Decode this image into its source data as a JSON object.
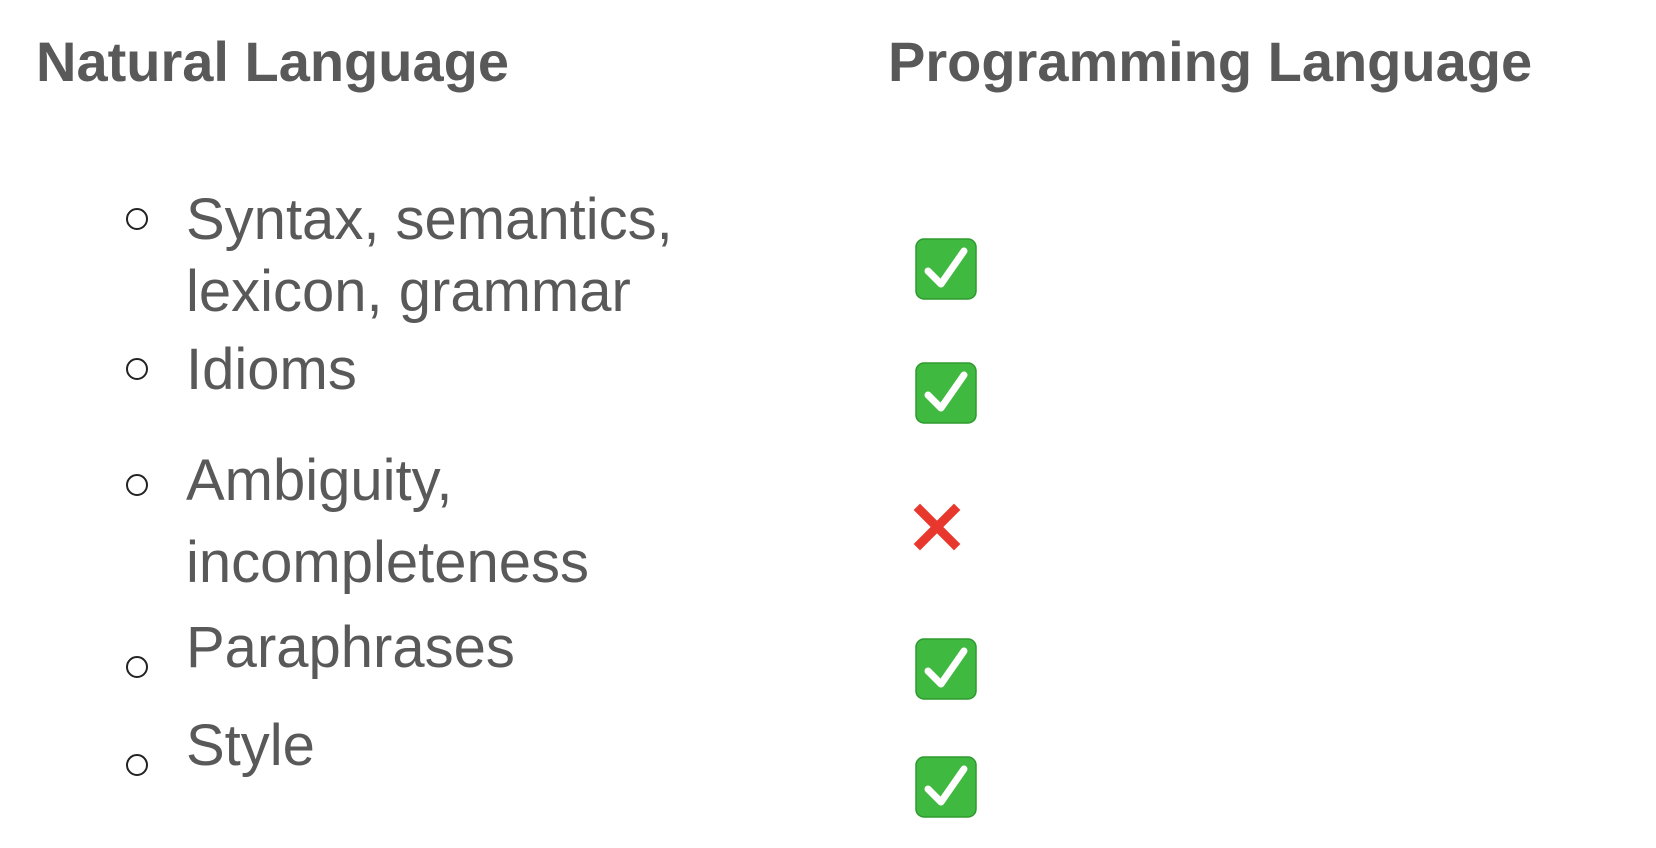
{
  "headings": {
    "natural": "Natural Language",
    "programming": "Programming Language"
  },
  "items": [
    {
      "lines": [
        "Syntax, semantics,",
        "lexicon, grammar"
      ],
      "applies_to_programming": true,
      "mark_icon": "check-mark-icon"
    },
    {
      "lines": [
        "Idioms"
      ],
      "applies_to_programming": true,
      "mark_icon": "check-mark-icon"
    },
    {
      "lines": [
        "Ambiguity,",
        "incompleteness"
      ],
      "applies_to_programming": false,
      "mark_icon": "cross-mark-icon"
    },
    {
      "lines": [
        "Paraphrases"
      ],
      "applies_to_programming": true,
      "mark_icon": "check-mark-icon"
    },
    {
      "lines": [
        "Style"
      ],
      "applies_to_programming": true,
      "mark_icon": "check-mark-icon"
    }
  ],
  "colors": {
    "text": "#595959",
    "check_green": "#3fb93f",
    "cross_red": "#e8372c"
  }
}
